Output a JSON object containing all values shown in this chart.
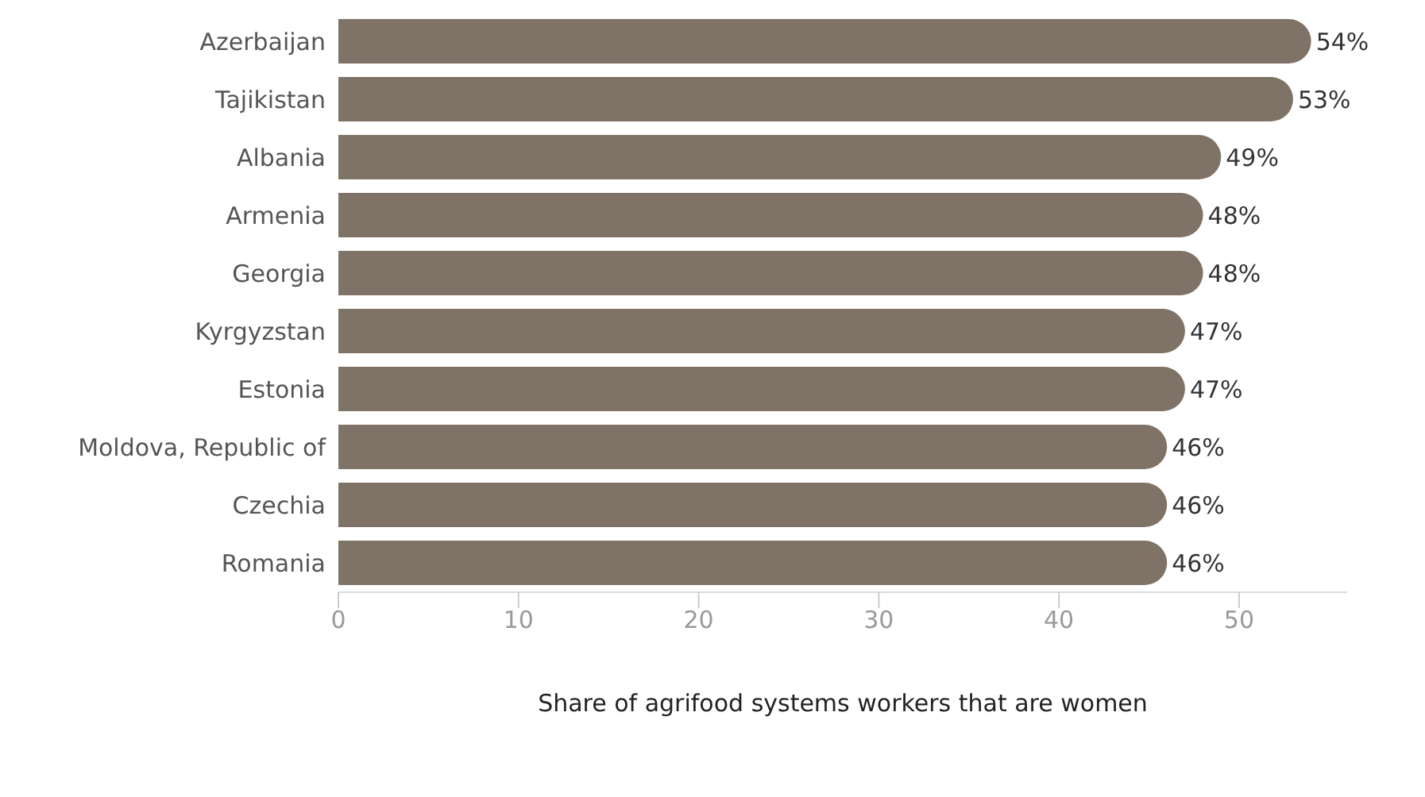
{
  "chart_data": {
    "type": "bar",
    "orientation": "horizontal",
    "xlabel": "Share of agrifood systems workers that are women",
    "categories": [
      "Azerbaijan",
      "Tajikistan",
      "Albania",
      "Armenia",
      "Georgia",
      "Kyrgyzstan",
      "Estonia",
      "Moldova, Republic of",
      "Czechia",
      "Romania"
    ],
    "values": [
      54,
      53,
      49,
      48,
      48,
      47,
      47,
      46,
      46,
      46
    ],
    "value_labels": [
      "54%",
      "53%",
      "49%",
      "48%",
      "48%",
      "47%",
      "47%",
      "46%",
      "46%",
      "46%"
    ],
    "color": "#7f7267",
    "xlim": [
      0,
      56
    ],
    "xticks": [
      0,
      10,
      20,
      30,
      40,
      50
    ],
    "grid": false
  }
}
